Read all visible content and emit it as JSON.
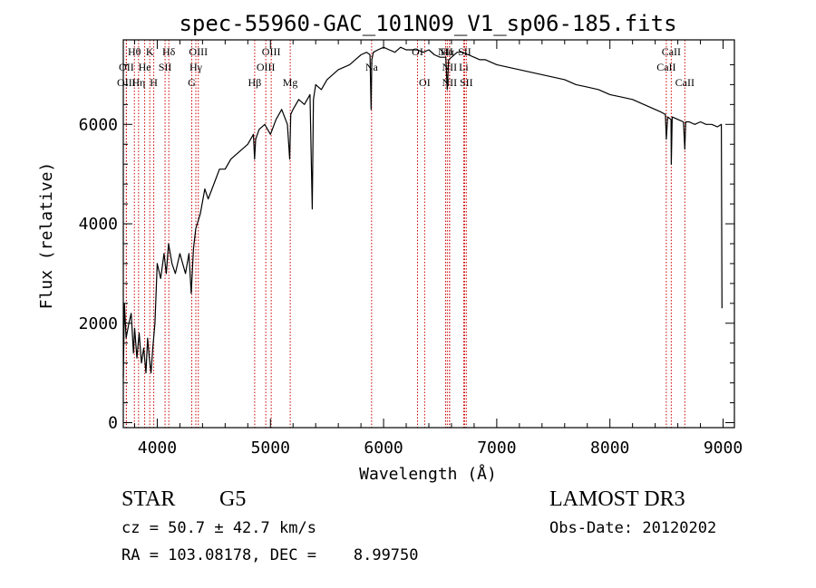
{
  "chart_data": {
    "type": "line",
    "title": "spec-55960-GAC_101N09_V1_sp06-185.fits",
    "xlabel": "Wavelength (Å)",
    "ylabel": "Flux (relative)",
    "xlim": [
      3700,
      9100
    ],
    "ylim": [
      -100,
      7700
    ],
    "xticks": [
      4000,
      5000,
      6000,
      7000,
      8000,
      9000
    ],
    "yticks": [
      0,
      2000,
      4000,
      6000
    ],
    "grid": false,
    "series": [
      {
        "name": "flux",
        "x": [
          3700,
          3710,
          3725,
          3750,
          3770,
          3790,
          3800,
          3820,
          3840,
          3860,
          3880,
          3900,
          3915,
          3930,
          3945,
          3960,
          3980,
          4000,
          4030,
          4060,
          4080,
          4100,
          4130,
          4160,
          4200,
          4250,
          4280,
          4300,
          4320,
          4340,
          4380,
          4420,
          4450,
          4500,
          4550,
          4600,
          4650,
          4700,
          4750,
          4800,
          4850,
          4860,
          4870,
          4900,
          4950,
          5000,
          5050,
          5100,
          5150,
          5170,
          5180,
          5200,
          5250,
          5300,
          5350,
          5370,
          5380,
          5400,
          5450,
          5500,
          5550,
          5600,
          5650,
          5700,
          5750,
          5800,
          5850,
          5880,
          5890,
          5896,
          5910,
          5950,
          6000,
          6050,
          6100,
          6150,
          6200,
          6250,
          6300,
          6350,
          6400,
          6450,
          6500,
          6550,
          6563,
          6575,
          6600,
          6650,
          6700,
          6750,
          6800,
          6850,
          6900,
          6950,
          7000,
          7100,
          7200,
          7300,
          7400,
          7500,
          7600,
          7700,
          7800,
          7900,
          8000,
          8100,
          8200,
          8300,
          8400,
          8450,
          8490,
          8498,
          8510,
          8540,
          8542,
          8550,
          8600,
          8650,
          8662,
          8670,
          8700,
          8750,
          8800,
          8850,
          8900,
          8950,
          8985,
          8990
        ],
        "y": [
          900,
          2400,
          1700,
          2000,
          2200,
          1400,
          1900,
          1300,
          1800,
          1200,
          1500,
          1000,
          1700,
          1300,
          1000,
          1500,
          2000,
          3200,
          2900,
          3400,
          3000,
          3600,
          3200,
          3000,
          3400,
          3000,
          3400,
          2600,
          3500,
          3900,
          4200,
          4700,
          4500,
          4800,
          5100,
          5100,
          5300,
          5400,
          5500,
          5600,
          5800,
          5300,
          5700,
          5900,
          6000,
          5800,
          6100,
          6300,
          6000,
          5300,
          6200,
          6300,
          6500,
          6400,
          6600,
          4300,
          6500,
          6800,
          6700,
          6900,
          7000,
          7100,
          7150,
          7200,
          7300,
          7400,
          7450,
          7400,
          6300,
          7300,
          7450,
          7500,
          7550,
          7500,
          7450,
          7550,
          7500,
          7500,
          7500,
          7450,
          7500,
          7400,
          7350,
          7350,
          6700,
          7300,
          7350,
          7450,
          7450,
          7400,
          7350,
          7300,
          7300,
          7250,
          7200,
          7150,
          7100,
          7050,
          7000,
          6950,
          6900,
          6800,
          6750,
          6700,
          6600,
          6550,
          6500,
          6400,
          6300,
          6250,
          6200,
          5700,
          6150,
          6100,
          5200,
          6150,
          6100,
          6050,
          5500,
          6050,
          6050,
          6000,
          6050,
          6000,
          6000,
          5950,
          6000,
          2300
        ]
      }
    ],
    "spectral_lines": [
      {
        "name": "Hθ",
        "wavelength": 3798,
        "tier": 0
      },
      {
        "name": "OII",
        "wavelength": 3727,
        "tier": 1
      },
      {
        "name": "OIII",
        "wavelength": 3727,
        "tier": 2
      },
      {
        "name": "Hη",
        "wavelength": 3835,
        "tier": 2
      },
      {
        "name": "He",
        "wavelength": 3889,
        "tier": 1
      },
      {
        "name": "K",
        "wavelength": 3934,
        "tier": 0
      },
      {
        "name": "H",
        "wavelength": 3969,
        "tier": 2
      },
      {
        "name": "SII",
        "wavelength": 4069,
        "tier": 1
      },
      {
        "name": "Hδ",
        "wavelength": 4102,
        "tier": 0
      },
      {
        "name": "OIII",
        "wavelength": 4363,
        "tier": 0
      },
      {
        "name": "Hγ",
        "wavelength": 4341,
        "tier": 1
      },
      {
        "name": "G",
        "wavelength": 4305,
        "tier": 2
      },
      {
        "name": "Hβ",
        "wavelength": 4861,
        "tier": 2
      },
      {
        "name": "OIII",
        "wavelength": 5007,
        "tier": 0
      },
      {
        "name": "OIII",
        "wavelength": 4959,
        "tier": 1
      },
      {
        "name": "Mg",
        "wavelength": 5175,
        "tier": 2
      },
      {
        "name": "Na",
        "wavelength": 5894,
        "tier": 1
      },
      {
        "name": "OI",
        "wavelength": 6300,
        "tier": 0
      },
      {
        "name": "OI",
        "wavelength": 6363,
        "tier": 2
      },
      {
        "name": "NII",
        "wavelength": 6548,
        "tier": 0
      },
      {
        "name": "Hα",
        "wavelength": 6563,
        "tier": 0
      },
      {
        "name": "NII",
        "wavelength": 6583,
        "tier": 1
      },
      {
        "name": "NII",
        "wavelength": 6583,
        "tier": 2
      },
      {
        "name": "SII",
        "wavelength": 6716,
        "tier": 0
      },
      {
        "name": "Li",
        "wavelength": 6708,
        "tier": 1
      },
      {
        "name": "SII",
        "wavelength": 6731,
        "tier": 2
      },
      {
        "name": "CaII",
        "wavelength": 8542,
        "tier": 0
      },
      {
        "name": "CaII",
        "wavelength": 8498,
        "tier": 1
      },
      {
        "name": "CaII",
        "wavelength": 8662,
        "tier": 2
      }
    ]
  },
  "info": {
    "object_class": "STAR",
    "subclass": "G5",
    "survey": "LAMOST DR3",
    "redshift_line": "cz = 50.7 ± 42.7 km/s",
    "obs_date_line": "Obs-Date: 20120202",
    "coord_line": "RA = 103.08178, DEC =    8.99750"
  },
  "colors": {
    "axis": "#000000",
    "spectrum": "#000000",
    "line_marker": "#cc0000"
  }
}
